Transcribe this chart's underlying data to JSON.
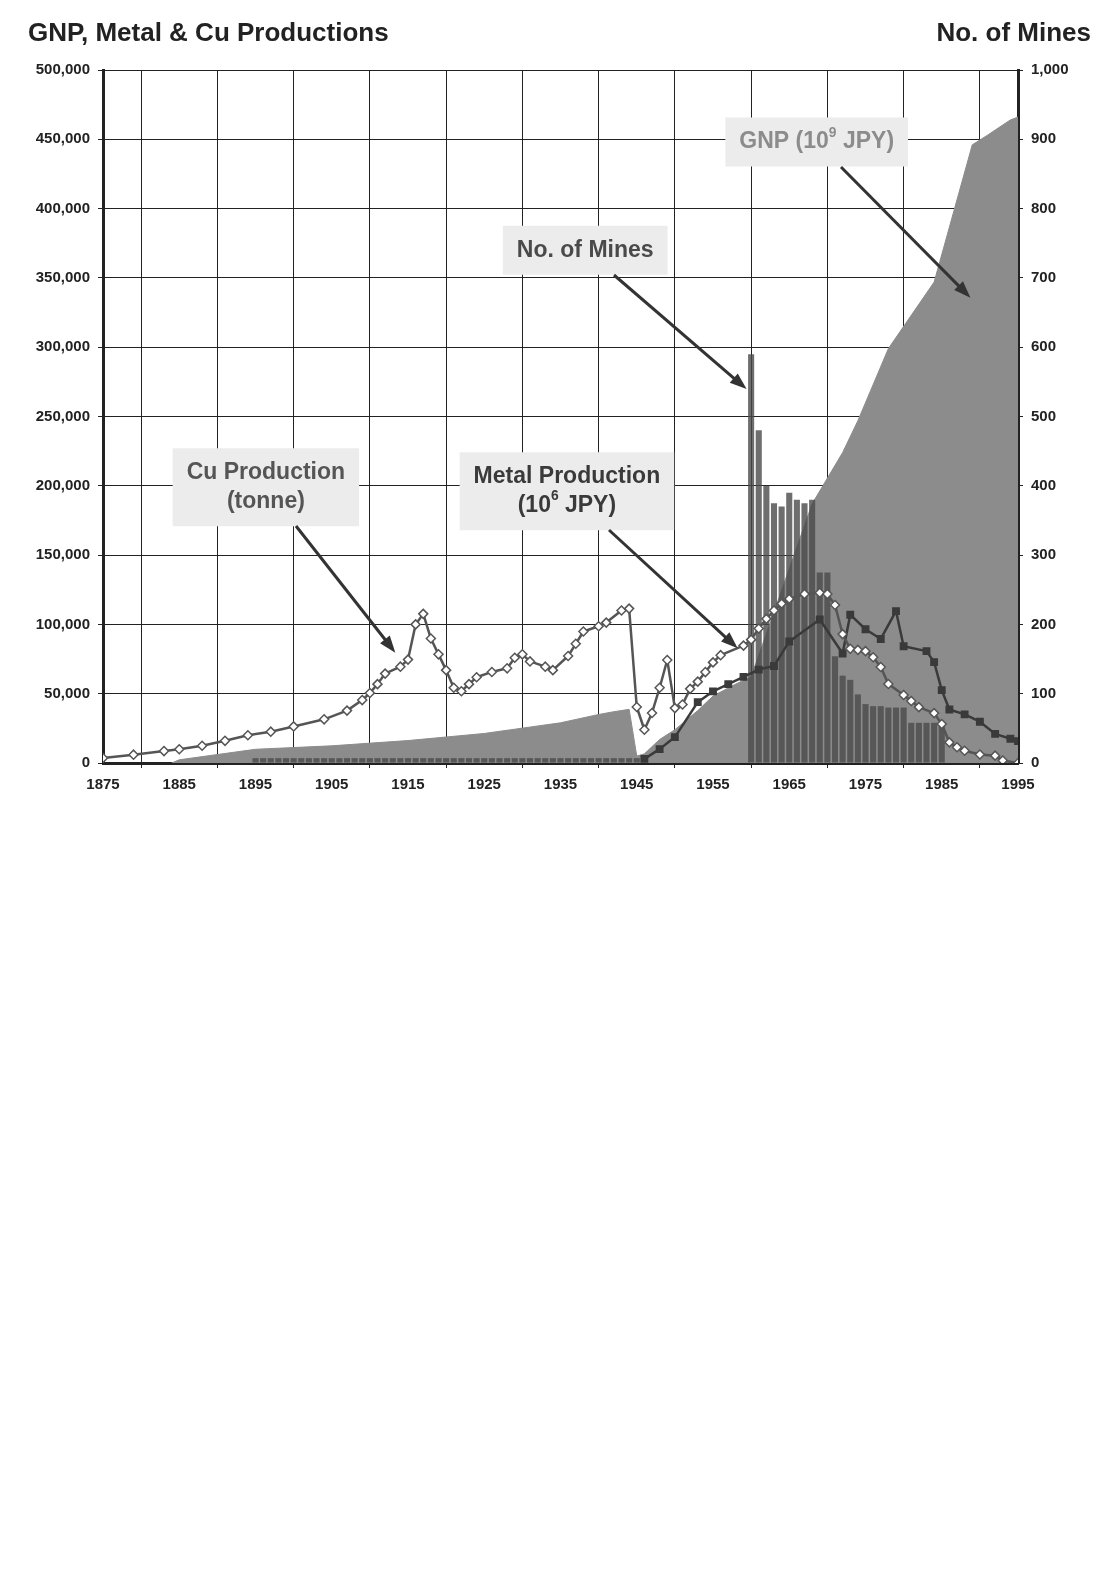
{
  "chart_data": {
    "type": "line",
    "title": "GNP, Metal & Cu Productions",
    "y2label": "No. of Mines",
    "xlim": [
      1875,
      1995
    ],
    "xticks": [
      1875,
      1885,
      1895,
      1905,
      1915,
      1925,
      1935,
      1945,
      1955,
      1965,
      1975,
      1985,
      1995
    ],
    "ylim": [
      0,
      500000
    ],
    "yticks": [
      {
        "value": 0,
        "label": "0"
      },
      {
        "value": 50000,
        "label": "50,000"
      },
      {
        "value": 100000,
        "label": "100,000"
      },
      {
        "value": 150000,
        "label": "150,000"
      },
      {
        "value": 200000,
        "label": "200,000"
      },
      {
        "value": 250000,
        "label": "250,000"
      },
      {
        "value": 300000,
        "label": "300,000"
      },
      {
        "value": 350000,
        "label": "350,000"
      },
      {
        "value": 400000,
        "label": "400,000"
      },
      {
        "value": 450000,
        "label": "450,000"
      },
      {
        "value": 500000,
        "label": "500,000"
      }
    ],
    "y2lim": [
      0,
      1000
    ],
    "y2ticks": [
      0,
      100,
      200,
      300,
      400,
      500,
      600,
      700,
      800,
      900,
      {
        "value": 1000,
        "label": "1,000"
      }
    ],
    "grid": true,
    "legend": false,
    "series": [
      {
        "name": "GNP (10$^{9}$ JPY)",
        "type": "area",
        "color": "#8c8c8c",
        "x": [
          1884,
          1885,
          1895,
          1905,
          1915,
          1925,
          1935,
          1940,
          1942,
          1944,
          1945,
          1946,
          1948,
          1950,
          1953,
          1955,
          1958,
          1960,
          1968,
          1972,
          1974,
          1978,
          1984,
          1989,
          1991,
          1994,
          1995
        ],
        "values": [
          0,
          2300,
          9900,
          12400,
          16200,
          21300,
          29000,
          35000,
          37000,
          38700,
          5000,
          6600,
          17000,
          24000,
          37800,
          48300,
          57000,
          62000,
          187000,
          224000,
          247000,
          299000,
          347000,
          446000,
          453000,
          464000,
          466000
        ]
      },
      {
        "name": "No. of Mines",
        "type": "bar",
        "axis": "y2",
        "color": "#4a4a4a",
        "x": [
          1895,
          1896,
          1897,
          1898,
          1899,
          1900,
          1901,
          1902,
          1903,
          1904,
          1905,
          1906,
          1907,
          1908,
          1909,
          1910,
          1911,
          1912,
          1913,
          1914,
          1915,
          1916,
          1917,
          1918,
          1919,
          1920,
          1921,
          1922,
          1923,
          1924,
          1925,
          1926,
          1927,
          1928,
          1929,
          1930,
          1931,
          1932,
          1933,
          1934,
          1935,
          1936,
          1937,
          1938,
          1939,
          1940,
          1941,
          1942,
          1943,
          1944,
          1945,
          1960,
          1961,
          1962,
          1963,
          1964,
          1965,
          1966,
          1967,
          1968,
          1969,
          1970,
          1971,
          1972,
          1973,
          1974,
          1975,
          1976,
          1977,
          1978,
          1979,
          1980,
          1981,
          1982,
          1983,
          1984,
          1985
        ],
        "values": [
          7,
          7,
          7,
          7,
          7,
          7,
          7,
          7,
          7,
          7,
          7,
          7,
          7,
          7,
          7,
          7,
          7,
          7,
          7,
          7,
          7,
          7,
          7,
          7,
          7,
          7,
          7,
          7,
          7,
          7,
          7,
          7,
          7,
          7,
          7,
          7,
          7,
          7,
          7,
          7,
          7,
          7,
          7,
          7,
          7,
          7,
          7,
          7,
          7,
          7,
          7,
          590,
          480,
          400,
          375,
          370,
          390,
          380,
          375,
          380,
          275,
          275,
          154,
          126,
          120,
          99,
          85,
          82,
          82,
          80,
          80,
          80,
          58,
          58,
          58,
          58,
          53
        ]
      },
      {
        "name": "Metal Production (10$^{6}$ JPY)",
        "type": "line",
        "marker": "square",
        "color": "#3a3a3a",
        "x": [
          1946,
          1948,
          1950,
          1953,
          1955,
          1957,
          1959,
          1961,
          1963,
          1965,
          1969,
          1972,
          1973,
          1975,
          1977,
          1979,
          1980,
          1983,
          1984,
          1985,
          1986,
          1988,
          1990,
          1992,
          1994,
          1995
        ],
        "values": [
          3000,
          10000,
          18700,
          43900,
          51700,
          56900,
          62100,
          67400,
          70000,
          87700,
          103500,
          79000,
          107000,
          96500,
          89500,
          109600,
          84200,
          80700,
          72800,
          52600,
          38600,
          35100,
          29800,
          21000,
          17500,
          15800
        ]
      },
      {
        "name": "Cu Production (tonne)",
        "marker": "diamond",
        "color": "#555555",
        "x": [
          1875,
          1879,
          1883,
          1885,
          1888,
          1891,
          1894,
          1897,
          1900,
          1904,
          1907,
          1909,
          1910,
          1911,
          1912,
          1914,
          1915,
          1916,
          1917,
          1918,
          1919,
          1920,
          1921,
          1922,
          1923,
          1924,
          1926,
          1928,
          1929,
          1930,
          1931,
          1933,
          1934,
          1936,
          1937,
          1938,
          1940,
          1941,
          1943,
          1944,
          1945,
          1946,
          1947,
          1948,
          1949,
          1950,
          1951,
          1952,
          1953,
          1954,
          1955,
          1956,
          1959,
          1960,
          1961,
          1962,
          1963,
          1964,
          1965,
          1967,
          1969,
          1970,
          1971,
          1972,
          1973,
          1974,
          1975,
          1976,
          1977,
          1978,
          1980,
          1981,
          1982,
          1984,
          1985,
          1986,
          1987,
          1988,
          1990,
          1992,
          1993,
          1995
        ],
        "values": [
          3600,
          6000,
          8600,
          9900,
          12400,
          16000,
          20000,
          22600,
          26400,
          31500,
          37800,
          45400,
          50500,
          56900,
          64500,
          69500,
          74600,
          100000,
          107600,
          89800,
          78400,
          67000,
          54300,
          51800,
          56900,
          61900,
          65700,
          68300,
          75900,
          78400,
          73300,
          69500,
          67000,
          77200,
          86000,
          94900,
          98700,
          101300,
          110000,
          111400,
          40400,
          24000,
          36100,
          54300,
          74300,
          39600,
          42200,
          53500,
          58700,
          65600,
          72600,
          77800,
          84700,
          89000,
          97000,
          104000,
          110000,
          115000,
          118400,
          121900,
          122800,
          121900,
          114000,
          93000,
          82400,
          81600,
          80700,
          76300,
          69300,
          57000,
          49100,
          44700,
          40300,
          36000,
          28100,
          14900,
          11400,
          8800,
          6100,
          5300,
          1800,
          0
        ]
      }
    ]
  }
}
